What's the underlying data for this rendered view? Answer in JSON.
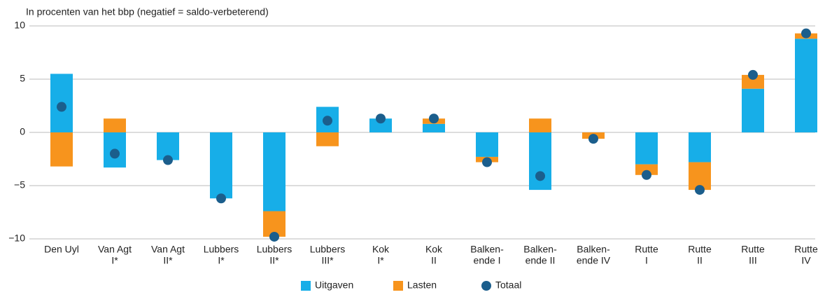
{
  "chart_data": {
    "type": "diverging-stacked-bar",
    "title": "In procenten van het bbp (negatief = saldo-verbeterend)",
    "categories": [
      [
        "Den Uyl"
      ],
      [
        "Van Agt",
        "I*"
      ],
      [
        "Van Agt",
        "II*"
      ],
      [
        "Lubbers",
        "I*"
      ],
      [
        "Lubbers",
        "II*"
      ],
      [
        "Lubbers",
        "III*"
      ],
      [
        "Kok",
        "I*"
      ],
      [
        "Kok",
        "II"
      ],
      [
        "Balken-",
        "ende I"
      ],
      [
        "Balken-",
        "ende II"
      ],
      [
        "Balken-",
        "ende IV"
      ],
      [
        "Rutte",
        "I"
      ],
      [
        "Rutte",
        "II"
      ],
      [
        "Rutte",
        "III"
      ],
      [
        "Rutte",
        "IV"
      ]
    ],
    "series": [
      {
        "name": "Uitgaven",
        "color": "#17aee8",
        "values": [
          5.5,
          -3.3,
          -2.6,
          -6.2,
          -7.4,
          2.4,
          1.3,
          0.8,
          -2.3,
          -5.4,
          0,
          -3.0,
          -2.8,
          4.1,
          8.8
        ]
      },
      {
        "name": "Lasten",
        "color": "#f7941d",
        "values": [
          -3.2,
          1.3,
          0,
          0,
          -2.4,
          -1.3,
          0,
          0.5,
          -0.5,
          1.3,
          -0.6,
          -1.0,
          -2.6,
          1.3,
          0.5
        ]
      }
    ],
    "total": {
      "name": "Totaal",
      "color": "#1b5e8c",
      "values": [
        2.4,
        -2.0,
        -2.6,
        -6.2,
        -9.8,
        1.1,
        1.3,
        1.3,
        -2.8,
        -4.1,
        -0.6,
        -4.0,
        -5.4,
        5.4,
        9.3
      ]
    },
    "ylim": [
      -10,
      10
    ],
    "yticks": [
      {
        "value": -10,
        "label": "−10"
      },
      {
        "value": -5,
        "label": "−5"
      },
      0,
      5,
      10
    ],
    "grid": true
  }
}
